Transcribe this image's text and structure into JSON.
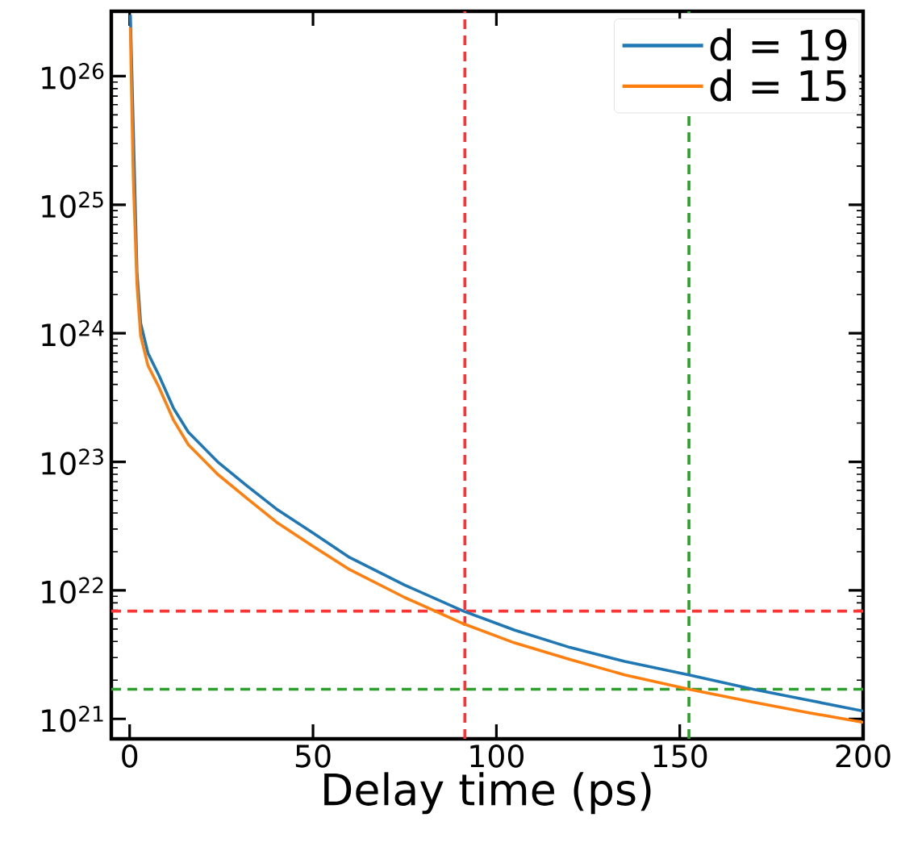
{
  "chart_data": {
    "type": "line",
    "xlabel": "Delay time (ps)",
    "log": "y",
    "legend": "top right",
    "line_style": "solid",
    "marker": "none",
    "grid": false,
    "xlim": [
      -5,
      200
    ],
    "xticks": [
      0,
      50,
      100,
      150,
      200
    ],
    "ylim": [
      7e+20,
      3.2e+26
    ],
    "yticks": [
      {
        "value": 1e+21,
        "label": "10$^{21}$"
      },
      {
        "value": 1e+22,
        "label": "10$^{22}$"
      },
      {
        "value": 1e+23,
        "label": "10$^{23}$"
      },
      {
        "value": 1e+24,
        "label": "10$^{24}$"
      },
      {
        "value": 1e+25,
        "label": "10$^{25}$"
      },
      {
        "value": 1e+26,
        "label": "10$^{26}$"
      }
    ],
    "x": [
      0.2,
      0.5,
      1,
      2,
      3,
      5,
      8,
      12,
      16,
      24,
      32,
      40,
      50,
      60,
      75,
      91,
      105,
      120,
      135,
      152.5,
      170,
      185,
      200
    ],
    "series": [
      {
        "name": "d = 19",
        "color": "#1f77b4",
        "values": [
          3e+26,
          null,
          null,
          3e+24,
          1.2e+24,
          7e+23,
          4.7e+23,
          2.6e+23,
          1.7e+23,
          1e+23,
          6.5e+22,
          4.3e+22,
          2.8e+22,
          1.8e+22,
          1.1e+22,
          6.9e+21,
          4.9e+21,
          3.6e+21,
          2.8e+21,
          2.2e+21,
          1.7e+21,
          1.4e+21,
          1.15e+21
        ]
      },
      {
        "name": "d = 15",
        "color": "#ff7f0e",
        "values": [
          2.4e+26,
          8e+25,
          1.6e+25,
          2.4e+24,
          9.6e+23,
          5.6e+23,
          3.8e+23,
          2.1e+23,
          1.36e+23,
          8e+22,
          5.2e+22,
          3.4e+22,
          2.2e+22,
          1.45e+22,
          8.8e+21,
          5.5e+21,
          3.9e+21,
          2.9e+21,
          2.2e+21,
          1.7e+21,
          1.35e+21,
          1.12e+21,
          9.4e+20
        ]
      }
    ],
    "ref_lines": [
      {
        "axis": "x",
        "value": 91.4,
        "color": "#ff3333",
        "line_style": "dashed"
      },
      {
        "axis": "y",
        "value": 6.9e+21,
        "color": "#ff3333",
        "line_style": "dashed"
      },
      {
        "axis": "x",
        "value": 152.5,
        "color": "#2ca02c",
        "line_style": "dashed"
      },
      {
        "axis": "y",
        "value": 1.7e+21,
        "color": "#2ca02c",
        "line_style": "dashed"
      }
    ]
  }
}
